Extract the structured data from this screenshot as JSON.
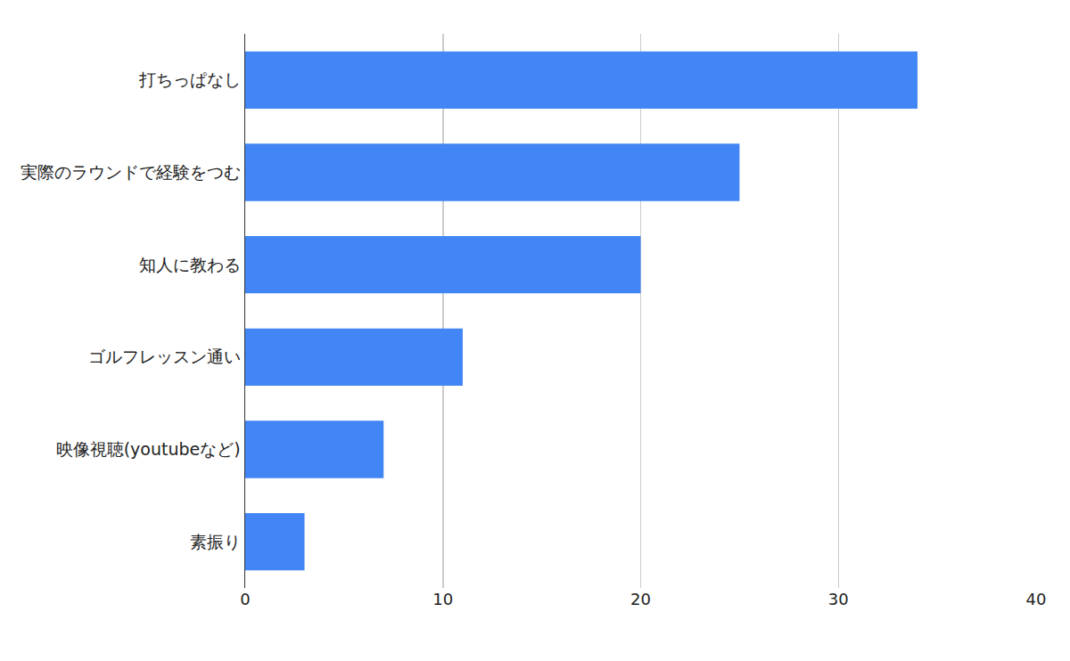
{
  "chart_data": {
    "type": "bar",
    "orientation": "horizontal",
    "categories": [
      "打ちっぱなし",
      "実際のラウンドで経験をつむ",
      "知人に教わる",
      "ゴルフレッスン通い",
      "映像視聴(youtubeなど)",
      "素振り"
    ],
    "values": [
      34,
      25,
      20,
      11,
      7,
      3
    ],
    "color": "#4285f4",
    "xlim": [
      0,
      40
    ],
    "xticks": [
      0,
      10,
      20,
      30,
      40
    ],
    "grid": true
  }
}
